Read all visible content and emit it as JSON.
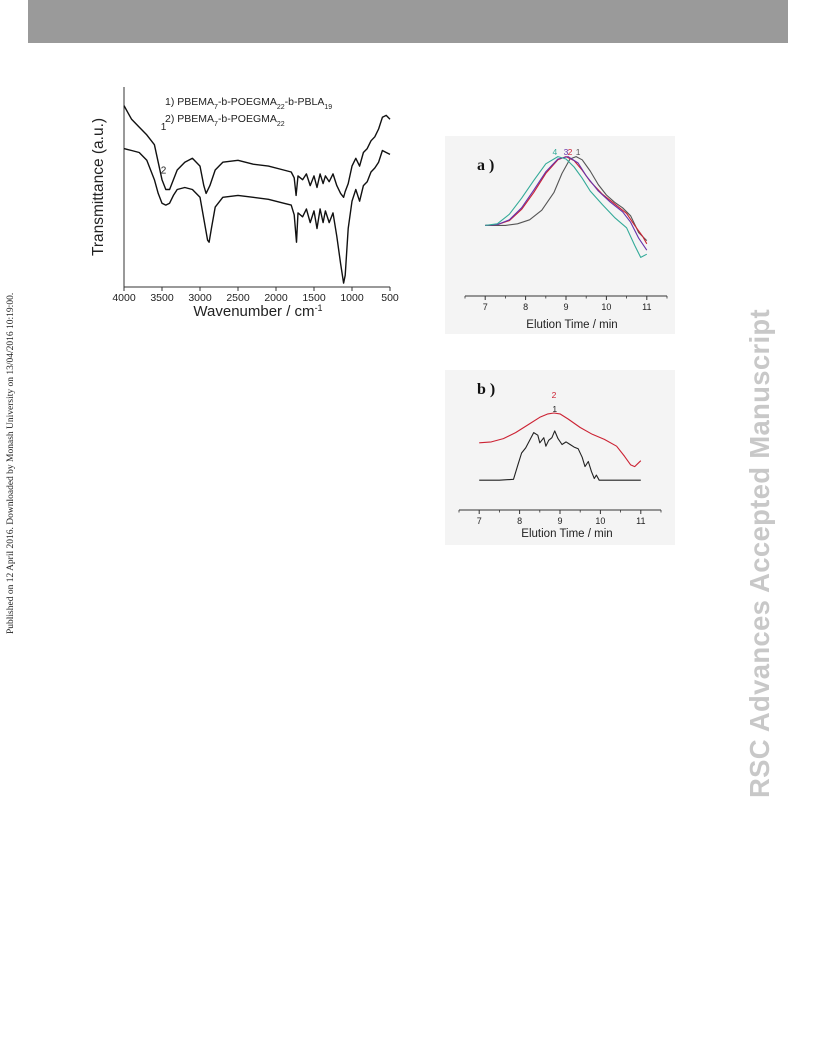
{
  "page": {
    "side_note": "Published on 12 April 2016. Downloaded by Monash University on 13/04/2016 10:19:00.",
    "watermark": "RSC Advances Accepted Manuscript"
  },
  "chart_data": [
    {
      "type": "line",
      "id": "ftir",
      "xlabel": "Wavenumber / cm",
      "xlabel_superscript": "-1",
      "ylabel": "Transmittance (a.u.)",
      "xlim": [
        4000,
        500
      ],
      "x_ticks": [
        "4000",
        "3500",
        "3000",
        "2500",
        "2000",
        "1500",
        "1000",
        "500"
      ],
      "legend": [
        {
          "num": "1)",
          "parts": [
            [
              "PBEMA",
              ""
            ],
            [
              "7",
              "sub"
            ],
            [
              "-b-POEGMA",
              ""
            ],
            [
              "22",
              "sub"
            ],
            [
              "-b-PBLA",
              ""
            ],
            [
              "19",
              "sub"
            ]
          ]
        },
        {
          "num": "2)",
          "parts": [
            [
              "PBEMA",
              ""
            ],
            [
              "7",
              "sub"
            ],
            [
              "-b-POEGMA",
              ""
            ],
            [
              "22",
              "sub"
            ]
          ]
        }
      ],
      "series": [
        {
          "label": "1",
          "color": "#111111",
          "points": [
            [
              4000,
              0.93
            ],
            [
              3900,
              0.86
            ],
            [
              3800,
              0.82
            ],
            [
              3700,
              0.78
            ],
            [
              3600,
              0.73
            ],
            [
              3550,
              0.64
            ],
            [
              3500,
              0.55
            ],
            [
              3450,
              0.5
            ],
            [
              3400,
              0.5
            ],
            [
              3350,
              0.55
            ],
            [
              3300,
              0.6
            ],
            [
              3200,
              0.64
            ],
            [
              3100,
              0.66
            ],
            [
              3000,
              0.62
            ],
            [
              2950,
              0.52
            ],
            [
              2920,
              0.48
            ],
            [
              2870,
              0.52
            ],
            [
              2800,
              0.6
            ],
            [
              2700,
              0.64
            ],
            [
              2500,
              0.65
            ],
            [
              2300,
              0.63
            ],
            [
              2100,
              0.62
            ],
            [
              1900,
              0.6
            ],
            [
              1800,
              0.59
            ],
            [
              1760,
              0.56
            ],
            [
              1735,
              0.47
            ],
            [
              1710,
              0.57
            ],
            [
              1650,
              0.55
            ],
            [
              1600,
              0.58
            ],
            [
              1550,
              0.52
            ],
            [
              1500,
              0.57
            ],
            [
              1460,
              0.51
            ],
            [
              1420,
              0.58
            ],
            [
              1380,
              0.53
            ],
            [
              1350,
              0.57
            ],
            [
              1300,
              0.54
            ],
            [
              1250,
              0.58
            ],
            [
              1200,
              0.52
            ],
            [
              1150,
              0.48
            ],
            [
              1110,
              0.46
            ],
            [
              1090,
              0.49
            ],
            [
              1050,
              0.53
            ],
            [
              1000,
              0.62
            ],
            [
              950,
              0.66
            ],
            [
              900,
              0.62
            ],
            [
              850,
              0.69
            ],
            [
              800,
              0.71
            ],
            [
              750,
              0.75
            ],
            [
              700,
              0.77
            ],
            [
              650,
              0.81
            ],
            [
              600,
              0.87
            ],
            [
              550,
              0.88
            ],
            [
              500,
              0.86
            ]
          ]
        },
        {
          "label": "2",
          "color": "#111111",
          "points": [
            [
              4000,
              0.71
            ],
            [
              3900,
              0.7
            ],
            [
              3800,
              0.69
            ],
            [
              3700,
              0.65
            ],
            [
              3600,
              0.55
            ],
            [
              3550,
              0.48
            ],
            [
              3500,
              0.43
            ],
            [
              3450,
              0.42
            ],
            [
              3400,
              0.43
            ],
            [
              3350,
              0.47
            ],
            [
              3300,
              0.5
            ],
            [
              3200,
              0.51
            ],
            [
              3100,
              0.5
            ],
            [
              3000,
              0.46
            ],
            [
              2950,
              0.35
            ],
            [
              2900,
              0.24
            ],
            [
              2880,
              0.23
            ],
            [
              2850,
              0.3
            ],
            [
              2800,
              0.41
            ],
            [
              2700,
              0.46
            ],
            [
              2500,
              0.47
            ],
            [
              2300,
              0.46
            ],
            [
              2100,
              0.45
            ],
            [
              1900,
              0.43
            ],
            [
              1800,
              0.42
            ],
            [
              1760,
              0.37
            ],
            [
              1730,
              0.23
            ],
            [
              1710,
              0.38
            ],
            [
              1650,
              0.36
            ],
            [
              1600,
              0.4
            ],
            [
              1550,
              0.33
            ],
            [
              1500,
              0.39
            ],
            [
              1460,
              0.3
            ],
            [
              1420,
              0.4
            ],
            [
              1380,
              0.33
            ],
            [
              1350,
              0.39
            ],
            [
              1300,
              0.33
            ],
            [
              1250,
              0.38
            ],
            [
              1200,
              0.26
            ],
            [
              1150,
              0.12
            ],
            [
              1110,
              0.02
            ],
            [
              1090,
              0.06
            ],
            [
              1050,
              0.3
            ],
            [
              1000,
              0.44
            ],
            [
              950,
              0.5
            ],
            [
              900,
              0.44
            ],
            [
              850,
              0.52
            ],
            [
              800,
              0.54
            ],
            [
              750,
              0.59
            ],
            [
              700,
              0.61
            ],
            [
              650,
              0.64
            ],
            [
              600,
              0.7
            ],
            [
              550,
              0.69
            ],
            [
              500,
              0.68
            ]
          ]
        }
      ]
    },
    {
      "type": "line",
      "id": "gpc-a",
      "panel": "a )",
      "xlabel": "Elution Time / min",
      "xlim": [
        6.5,
        11.5
      ],
      "x_ticks": [
        "7",
        "8",
        "9",
        "10",
        "11"
      ],
      "series": [
        {
          "label": "1",
          "color": "#555555",
          "points": [
            [
              7.0,
              0.07
            ],
            [
              7.5,
              0.07
            ],
            [
              7.8,
              0.09
            ],
            [
              8.1,
              0.14
            ],
            [
              8.4,
              0.26
            ],
            [
              8.7,
              0.48
            ],
            [
              8.9,
              0.72
            ],
            [
              9.1,
              0.9
            ],
            [
              9.25,
              0.93
            ],
            [
              9.4,
              0.89
            ],
            [
              9.6,
              0.75
            ],
            [
              9.8,
              0.58
            ],
            [
              10.0,
              0.45
            ],
            [
              10.2,
              0.36
            ],
            [
              10.4,
              0.29
            ],
            [
              10.6,
              0.19
            ],
            [
              10.8,
              -0.02
            ],
            [
              11.0,
              -0.12
            ]
          ]
        },
        {
          "label": "2",
          "color": "#cc2233",
          "points": [
            [
              7.0,
              0.07
            ],
            [
              7.3,
              0.08
            ],
            [
              7.6,
              0.13
            ],
            [
              7.9,
              0.27
            ],
            [
              8.2,
              0.48
            ],
            [
              8.5,
              0.72
            ],
            [
              8.8,
              0.89
            ],
            [
              9.0,
              0.93
            ],
            [
              9.2,
              0.88
            ],
            [
              9.4,
              0.76
            ],
            [
              9.6,
              0.62
            ],
            [
              9.9,
              0.46
            ],
            [
              10.2,
              0.34
            ],
            [
              10.5,
              0.22
            ],
            [
              10.7,
              0.07
            ],
            [
              10.9,
              -0.07
            ],
            [
              11.0,
              -0.16
            ]
          ]
        },
        {
          "label": "3",
          "color": "#6633aa",
          "points": [
            [
              7.0,
              0.07
            ],
            [
              7.3,
              0.08
            ],
            [
              7.6,
              0.14
            ],
            [
              7.9,
              0.29
            ],
            [
              8.2,
              0.51
            ],
            [
              8.5,
              0.74
            ],
            [
              8.8,
              0.9
            ],
            [
              9.05,
              0.93
            ],
            [
              9.3,
              0.85
            ],
            [
              9.5,
              0.69
            ],
            [
              9.8,
              0.5
            ],
            [
              10.1,
              0.36
            ],
            [
              10.4,
              0.24
            ],
            [
              10.6,
              0.11
            ],
            [
              10.8,
              -0.09
            ],
            [
              11.0,
              -0.24
            ]
          ]
        },
        {
          "label": "4",
          "color": "#33aa99",
          "points": [
            [
              7.0,
              0.07
            ],
            [
              7.3,
              0.09
            ],
            [
              7.6,
              0.21
            ],
            [
              7.9,
              0.41
            ],
            [
              8.2,
              0.63
            ],
            [
              8.5,
              0.84
            ],
            [
              8.8,
              0.93
            ],
            [
              9.0,
              0.9
            ],
            [
              9.2,
              0.8
            ],
            [
              9.4,
              0.66
            ],
            [
              9.6,
              0.5
            ],
            [
              9.9,
              0.33
            ],
            [
              10.2,
              0.17
            ],
            [
              10.5,
              0.04
            ],
            [
              10.7,
              -0.18
            ],
            [
              10.85,
              -0.33
            ],
            [
              11.0,
              -0.29
            ]
          ]
        }
      ]
    },
    {
      "type": "line",
      "id": "gpc-b",
      "panel": "b )",
      "xlabel": "Elution Time / min",
      "xlim": [
        6.5,
        11.5
      ],
      "x_ticks": [
        "7",
        "8",
        "9",
        "10",
        "11"
      ],
      "series": [
        {
          "label": "2",
          "color": "#cc2233",
          "points": [
            [
              7.0,
              0.52
            ],
            [
              7.3,
              0.53
            ],
            [
              7.6,
              0.57
            ],
            [
              7.9,
              0.64
            ],
            [
              8.2,
              0.73
            ],
            [
              8.5,
              0.82
            ],
            [
              8.7,
              0.86
            ],
            [
              8.85,
              0.87
            ],
            [
              9.0,
              0.86
            ],
            [
              9.2,
              0.8
            ],
            [
              9.5,
              0.7
            ],
            [
              9.8,
              0.62
            ],
            [
              10.1,
              0.56
            ],
            [
              10.4,
              0.48
            ],
            [
              10.6,
              0.36
            ],
            [
              10.75,
              0.26
            ],
            [
              10.85,
              0.24
            ],
            [
              11.0,
              0.31
            ]
          ]
        },
        {
          "label": "1",
          "color": "#222222",
          "points": [
            [
              7.0,
              0.08
            ],
            [
              7.5,
              0.08
            ],
            [
              7.85,
              0.09
            ],
            [
              7.95,
              0.25
            ],
            [
              8.05,
              0.4
            ],
            [
              8.15,
              0.46
            ],
            [
              8.25,
              0.55
            ],
            [
              8.35,
              0.64
            ],
            [
              8.45,
              0.61
            ],
            [
              8.5,
              0.52
            ],
            [
              8.6,
              0.58
            ],
            [
              8.65,
              0.48
            ],
            [
              8.72,
              0.55
            ],
            [
              8.8,
              0.58
            ],
            [
              8.87,
              0.66
            ],
            [
              8.95,
              0.57
            ],
            [
              9.05,
              0.5
            ],
            [
              9.15,
              0.53
            ],
            [
              9.25,
              0.5
            ],
            [
              9.35,
              0.47
            ],
            [
              9.45,
              0.45
            ],
            [
              9.55,
              0.35
            ],
            [
              9.62,
              0.24
            ],
            [
              9.7,
              0.3
            ],
            [
              9.78,
              0.18
            ],
            [
              9.85,
              0.1
            ],
            [
              9.9,
              0.14
            ],
            [
              9.97,
              0.08
            ],
            [
              10.2,
              0.08
            ],
            [
              11.0,
              0.08
            ]
          ]
        }
      ]
    }
  ]
}
